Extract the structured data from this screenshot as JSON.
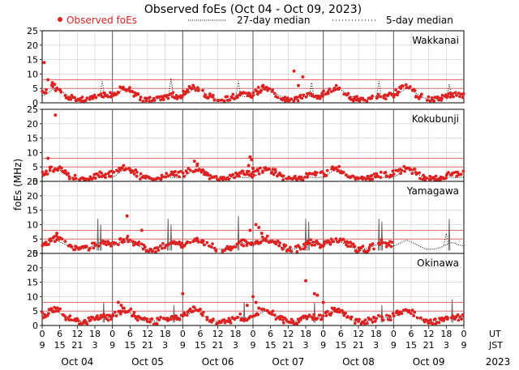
{
  "chart_data": {
    "type": "scatter",
    "title": "Observed foEs (Oct 04 - Oct 09, 2023)",
    "ylabel": "foEs (MHz)",
    "legend": {
      "observed": "Observed foEs",
      "median27": "27-day median",
      "median5": "5-day median"
    },
    "colors": {
      "observed": "#dd2222",
      "reference": "#e07070",
      "grid": "#cccccc",
      "divider": "#555555",
      "spike": "#666666"
    },
    "ylim": [
      0,
      25
    ],
    "yticks": [
      "0",
      "5",
      "10",
      "15",
      "20",
      "25"
    ],
    "reference_lines_mhz": [
      5,
      8
    ],
    "x_range_hours": [
      0,
      144
    ],
    "ut_ticks": [
      "0",
      "6",
      "12",
      "18",
      "0",
      "6",
      "12",
      "18",
      "0",
      "6",
      "12",
      "18",
      "0",
      "6",
      "12",
      "18",
      "0",
      "6",
      "12",
      "18",
      "0",
      "6",
      "12",
      "18",
      "0"
    ],
    "jst_ticks": [
      "9",
      "15",
      "21",
      "3",
      "9",
      "15",
      "21",
      "3",
      "9",
      "15",
      "21",
      "3",
      "9",
      "15",
      "21",
      "3",
      "9",
      "15",
      "21",
      "3",
      "9",
      "15",
      "21",
      "3",
      "9"
    ],
    "row_labels": {
      "ut": "UT",
      "jst": "JST"
    },
    "days": [
      "Oct 04",
      "Oct 05",
      "Oct 06",
      "Oct 07",
      "Oct 08",
      "Oct 09"
    ],
    "year": "2023",
    "stations": [
      {
        "name": "Wakkanai",
        "median_profile": [
          2.5,
          2.8,
          3.5,
          4.2,
          4.8,
          5.0,
          4.6,
          3.8,
          3.0,
          2.5,
          2.0,
          1.5,
          1.2,
          1.0,
          1.0,
          1.2,
          1.5,
          2.0,
          2.3,
          2.4,
          2.3,
          2.2,
          2.2,
          2.4
        ],
        "median5_bumps": [
          {
            "h": 20.5,
            "v": 7.5
          },
          {
            "h": 44,
            "v": 8.5
          },
          {
            "h": 67,
            "v": 7.5
          },
          {
            "h": 92,
            "v": 7.0
          },
          {
            "h": 115,
            "v": 7.5
          },
          {
            "h": 139,
            "v": 6.5
          }
        ],
        "observed_profile": [
          3.0,
          3.5,
          4.5,
          5.0,
          5.5,
          5.0,
          4.5,
          3.5,
          2.8,
          2.2,
          1.8,
          1.2,
          1.0,
          0.9,
          0.9,
          1.2,
          1.5,
          2.0,
          2.2,
          2.5,
          2.6,
          2.5,
          2.4,
          2.6
        ],
        "observed_days": [
          0,
          1,
          2,
          3,
          4,
          5
        ],
        "outliers": [
          {
            "h": 0.7,
            "v": 14
          },
          {
            "h": 2,
            "v": 8
          },
          {
            "h": 3.5,
            "v": 7
          },
          {
            "h": 86,
            "v": 11
          },
          {
            "h": 89,
            "v": 9
          },
          {
            "h": 87.5,
            "v": 6
          }
        ],
        "spikes": []
      },
      {
        "name": "Kokubunji",
        "median_profile": [
          1.5,
          2.0,
          2.8,
          3.5,
          4.0,
          4.2,
          4.0,
          3.2,
          2.5,
          2.0,
          1.5,
          1.0,
          0.8,
          0.8,
          0.8,
          0.9,
          1.0,
          1.2,
          1.3,
          1.4,
          1.4,
          1.3,
          1.3,
          1.4
        ],
        "median5_bumps": [],
        "observed_profile": [
          2.5,
          3.0,
          3.5,
          4.0,
          4.5,
          4.5,
          4.0,
          3.5,
          2.8,
          2.0,
          1.5,
          1.0,
          0.8,
          0.7,
          0.7,
          0.8,
          1.0,
          1.3,
          1.8,
          2.2,
          2.5,
          2.5,
          2.4,
          2.5
        ],
        "observed_days": [
          0,
          1,
          2,
          3,
          4,
          5
        ],
        "outliers": [
          {
            "h": 4.5,
            "v": 23
          },
          {
            "h": 2,
            "v": 8
          },
          {
            "h": 6,
            "v": 5
          },
          {
            "h": 52,
            "v": 7
          },
          {
            "h": 53,
            "v": 6
          },
          {
            "h": 71,
            "v": 8.5
          },
          {
            "h": 71.5,
            "v": 7.5
          },
          {
            "h": 72,
            "v": 4.5
          },
          {
            "h": 70.5,
            "v": 5.5
          }
        ],
        "spikes": []
      },
      {
        "name": "Yamagawa",
        "median_profile": [
          2.5,
          3.0,
          3.5,
          4.0,
          4.5,
          4.5,
          4.0,
          3.5,
          3.0,
          2.5,
          2.0,
          1.5,
          1.5,
          1.5,
          1.5,
          1.8,
          2.0,
          2.5,
          3.0,
          3.5,
          3.8,
          3.5,
          3.0,
          2.8
        ],
        "median5_bumps": [
          {
            "h": 138,
            "v": 7
          }
        ],
        "observed_profile": [
          3.0,
          3.5,
          4.0,
          4.5,
          5.0,
          5.0,
          4.5,
          4.0,
          3.5,
          3.0,
          2.5,
          1.8,
          1.5,
          1.4,
          1.4,
          1.6,
          2.0,
          2.5,
          3.0,
          3.5,
          3.8,
          3.6,
          3.2,
          3.0
        ],
        "observed_days": [
          0,
          1,
          2,
          3,
          4
        ],
        "outliers": [
          {
            "h": 5,
            "v": 7
          },
          {
            "h": 29,
            "v": 13
          },
          {
            "h": 34,
            "v": 8
          },
          {
            "h": 73,
            "v": 10
          },
          {
            "h": 74,
            "v": 9
          },
          {
            "h": 71,
            "v": 8
          },
          {
            "h": 75,
            "v": 7
          }
        ],
        "spikes": [
          {
            "h": 19,
            "v": 12
          },
          {
            "h": 20,
            "v": 10
          },
          {
            "h": 43,
            "v": 12
          },
          {
            "h": 44,
            "v": 10
          },
          {
            "h": 67,
            "v": 13
          },
          {
            "h": 90,
            "v": 12
          },
          {
            "h": 91,
            "v": 11
          },
          {
            "h": 115,
            "v": 12
          },
          {
            "h": 116,
            "v": 11
          },
          {
            "h": 139,
            "v": 12
          }
        ]
      },
      {
        "name": "Okinawa",
        "median_profile": [
          3.0,
          3.5,
          4.0,
          4.5,
          5.0,
          5.0,
          4.5,
          3.5,
          2.8,
          2.2,
          1.8,
          1.5,
          1.5,
          1.5,
          1.5,
          1.5,
          1.8,
          2.2,
          2.5,
          2.8,
          3.0,
          2.8,
          2.6,
          2.6
        ],
        "median5_bumps": [],
        "observed_profile": [
          3.5,
          4.0,
          4.5,
          5.0,
          5.5,
          5.5,
          5.0,
          4.0,
          3.0,
          2.5,
          2.0,
          1.5,
          1.3,
          1.2,
          1.2,
          1.4,
          1.8,
          2.2,
          2.5,
          2.8,
          3.0,
          2.8,
          2.6,
          2.8
        ],
        "observed_days": [
          0,
          1,
          2,
          3,
          4,
          5
        ],
        "outliers": [
          {
            "h": 26,
            "v": 8
          },
          {
            "h": 27,
            "v": 7
          },
          {
            "h": 48,
            "v": 11
          },
          {
            "h": 72,
            "v": 10
          },
          {
            "h": 73,
            "v": 8
          },
          {
            "h": 70,
            "v": 7
          },
          {
            "h": 74,
            "v": 6
          },
          {
            "h": 90,
            "v": 15.5
          },
          {
            "h": 93,
            "v": 11
          },
          {
            "h": 94,
            "v": 10.5
          },
          {
            "h": 96,
            "v": 8
          }
        ],
        "spikes": [
          {
            "h": 21,
            "v": 8
          },
          {
            "h": 45,
            "v": 7
          },
          {
            "h": 69,
            "v": 8
          },
          {
            "h": 93,
            "v": 8
          },
          {
            "h": 116,
            "v": 7
          },
          {
            "h": 140,
            "v": 9
          }
        ]
      }
    ]
  }
}
